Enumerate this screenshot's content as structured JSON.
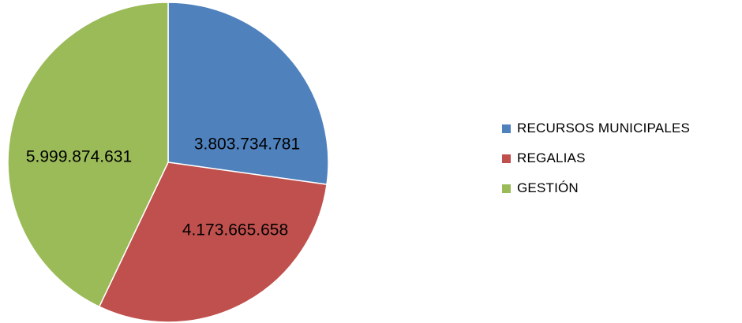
{
  "chart_data": {
    "type": "pie",
    "categories": [
      "RECURSOS MUNICIPALES",
      "REGALIAS",
      "GESTIÓN"
    ],
    "values": [
      3803734781,
      4173665658,
      5999874631
    ],
    "value_labels": [
      "3.803.734.781",
      "4.173.665.658",
      "5.999.874.631"
    ],
    "colors": [
      "#4F81BD",
      "#C0504D",
      "#9BBB59"
    ],
    "start_angle": "12 o'clock",
    "direction": "clockwise",
    "legend": "right"
  }
}
